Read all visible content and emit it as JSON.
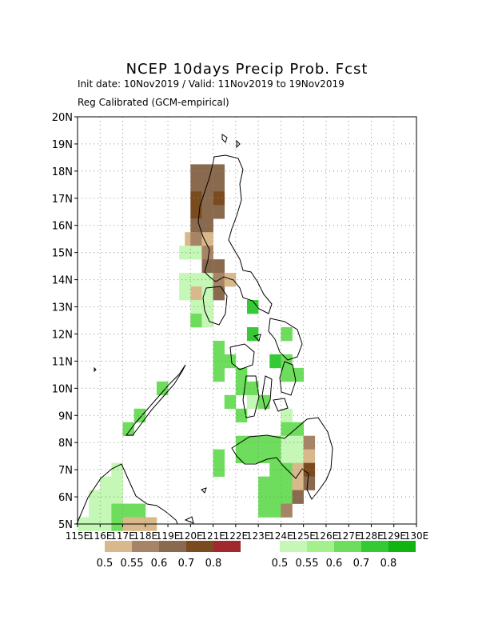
{
  "header": {
    "title": "NCEP 10days Precip Prob. Fcst",
    "subtitle_dates": "Init date: 10Nov2019 / Valid: 11Nov2019 to 19Nov2019",
    "subtitle_method": "Reg Calibrated (GCM-empirical)"
  },
  "map": {
    "lat_labels": [
      "5N",
      "6N",
      "7N",
      "8N",
      "9N",
      "10N",
      "11N",
      "12N",
      "13N",
      "14N",
      "15N",
      "16N",
      "17N",
      "18N",
      "19N",
      "20N"
    ],
    "lon_labels": [
      "115E",
      "116E",
      "117E",
      "118E",
      "119E",
      "120E",
      "121E",
      "122E",
      "123E",
      "124E",
      "125E",
      "126E",
      "127E",
      "128E",
      "129E",
      "130E"
    ],
    "lon_range": [
      115,
      130
    ],
    "lat_range": [
      5,
      20
    ],
    "grid": "dotted",
    "colors": {
      "dry": [
        "#d9b98c",
        "#a88466",
        "#8a6a4f",
        "#7a4b1e",
        "#a1282e"
      ],
      "wet": [
        "#c5f7b6",
        "#a4f08c",
        "#6edc5c",
        "#36c936",
        "#12b412"
      ]
    }
  },
  "legend": {
    "dry_labels": [
      "0.5",
      "0.55",
      "0.6",
      "0.7",
      "0.8"
    ],
    "wet_labels": [
      "0.5",
      "0.55",
      "0.6",
      "0.7",
      "0.8"
    ]
  },
  "chart_data": {
    "type": "heatmap",
    "cell_size_deg": 0.5,
    "cells": [
      [
        120.25,
        18.0,
        "d",
        2
      ],
      [
        120.75,
        18.0,
        "d",
        2
      ],
      [
        121.25,
        18.0,
        "d",
        2
      ],
      [
        120.25,
        17.5,
        "d",
        2
      ],
      [
        120.75,
        17.5,
        "d",
        2
      ],
      [
        121.25,
        17.5,
        "d",
        2
      ],
      [
        120.25,
        17.0,
        "d",
        3
      ],
      [
        120.75,
        17.0,
        "d",
        2
      ],
      [
        121.25,
        17.0,
        "d",
        3
      ],
      [
        120.25,
        16.5,
        "d",
        3
      ],
      [
        120.75,
        16.5,
        "d",
        2
      ],
      [
        121.25,
        16.5,
        "d",
        2
      ],
      [
        120.25,
        16.0,
        "d",
        2
      ],
      [
        120.75,
        16.0,
        "d",
        2
      ],
      [
        120.0,
        15.5,
        "d",
        0
      ],
      [
        120.25,
        15.5,
        "d",
        1
      ],
      [
        120.75,
        15.5,
        "d",
        0
      ],
      [
        119.75,
        15.0,
        "w",
        0
      ],
      [
        120.25,
        15.0,
        "w",
        0
      ],
      [
        120.75,
        15.0,
        "d",
        1
      ],
      [
        120.75,
        14.5,
        "d",
        2
      ],
      [
        121.25,
        14.5,
        "d",
        2
      ],
      [
        119.75,
        14.0,
        "w",
        0
      ],
      [
        120.25,
        14.0,
        "w",
        0
      ],
      [
        120.75,
        14.0,
        "w",
        0
      ],
      [
        121.25,
        14.0,
        "d",
        1
      ],
      [
        121.75,
        14.0,
        "d",
        0
      ],
      [
        120.25,
        13.5,
        "d",
        0
      ],
      [
        120.75,
        13.5,
        "w",
        0
      ],
      [
        121.25,
        13.5,
        "d",
        2
      ],
      [
        119.75,
        13.5,
        "w",
        0
      ],
      [
        120.25,
        13.0,
        "w",
        0
      ],
      [
        120.75,
        13.0,
        "w",
        0
      ],
      [
        120.25,
        12.5,
        "w",
        2
      ],
      [
        120.75,
        12.5,
        "w",
        0
      ],
      [
        122.75,
        13.0,
        "w",
        3
      ],
      [
        122.75,
        12.0,
        "w",
        3
      ],
      [
        124.25,
        12.0,
        "w",
        2
      ],
      [
        121.25,
        11.5,
        "w",
        2
      ],
      [
        121.25,
        11.0,
        "w",
        2
      ],
      [
        121.75,
        11.0,
        "w",
        2
      ],
      [
        121.25,
        10.5,
        "w",
        2
      ],
      [
        123.75,
        11.0,
        "w",
        3
      ],
      [
        124.25,
        11.0,
        "w",
        2
      ],
      [
        124.75,
        10.5,
        "w",
        2
      ],
      [
        124.25,
        10.5,
        "w",
        2
      ],
      [
        122.25,
        10.5,
        "w",
        2
      ],
      [
        122.25,
        10.0,
        "w",
        2
      ],
      [
        122.75,
        10.0,
        "w",
        2
      ],
      [
        121.75,
        9.5,
        "w",
        2
      ],
      [
        122.25,
        9.0,
        "w",
        2
      ],
      [
        122.75,
        9.5,
        "w",
        0
      ],
      [
        123.25,
        9.5,
        "w",
        2
      ],
      [
        124.25,
        9.0,
        "w",
        0
      ],
      [
        118.75,
        10.0,
        "w",
        2
      ],
      [
        117.75,
        9.0,
        "w",
        2
      ],
      [
        117.25,
        8.5,
        "w",
        2
      ],
      [
        122.25,
        8.0,
        "w",
        2
      ],
      [
        122.75,
        8.0,
        "w",
        2
      ],
      [
        123.25,
        8.0,
        "w",
        2
      ],
      [
        123.75,
        8.0,
        "w",
        2
      ],
      [
        124.25,
        8.5,
        "w",
        2
      ],
      [
        124.75,
        8.5,
        "w",
        2
      ],
      [
        124.25,
        8.0,
        "w",
        0
      ],
      [
        124.75,
        8.0,
        "w",
        0
      ],
      [
        125.25,
        8.0,
        "d",
        1
      ],
      [
        121.25,
        7.5,
        "w",
        2
      ],
      [
        122.25,
        7.5,
        "w",
        2
      ],
      [
        122.75,
        7.5,
        "w",
        2
      ],
      [
        123.25,
        7.5,
        "w",
        2
      ],
      [
        123.75,
        7.5,
        "w",
        2
      ],
      [
        124.25,
        7.5,
        "w",
        0
      ],
      [
        124.75,
        7.5,
        "w",
        0
      ],
      [
        125.25,
        7.5,
        "d",
        0
      ],
      [
        121.25,
        7.0,
        "w",
        2
      ],
      [
        123.75,
        7.0,
        "w",
        2
      ],
      [
        124.25,
        7.0,
        "w",
        2
      ],
      [
        124.75,
        7.0,
        "d",
        0
      ],
      [
        125.25,
        7.0,
        "d",
        3
      ],
      [
        123.25,
        6.5,
        "w",
        2
      ],
      [
        123.75,
        6.5,
        "w",
        2
      ],
      [
        124.25,
        6.5,
        "w",
        2
      ],
      [
        124.75,
        6.5,
        "d",
        0
      ],
      [
        125.25,
        6.5,
        "d",
        2
      ],
      [
        123.25,
        6.0,
        "w",
        2
      ],
      [
        123.75,
        6.0,
        "w",
        2
      ],
      [
        124.25,
        6.0,
        "w",
        2
      ],
      [
        124.75,
        6.0,
        "d",
        2
      ],
      [
        123.25,
        5.5,
        "w",
        2
      ],
      [
        123.75,
        5.5,
        "w",
        2
      ],
      [
        124.25,
        5.5,
        "d",
        1
      ],
      [
        115.75,
        6.0,
        "w",
        0
      ],
      [
        116.25,
        6.5,
        "w",
        0
      ],
      [
        116.75,
        6.5,
        "w",
        0
      ],
      [
        116.25,
        6.0,
        "w",
        0
      ],
      [
        116.75,
        6.0,
        "w",
        0
      ],
      [
        115.75,
        5.5,
        "w",
        0
      ],
      [
        116.25,
        5.5,
        "w",
        0
      ],
      [
        116.75,
        5.5,
        "w",
        2
      ],
      [
        117.25,
        5.5,
        "w",
        2
      ],
      [
        117.75,
        5.5,
        "w",
        2
      ],
      [
        115.25,
        5.0,
        "w",
        0
      ],
      [
        115.75,
        5.0,
        "w",
        0
      ],
      [
        116.25,
        5.0,
        "w",
        0
      ],
      [
        116.75,
        5.0,
        "w",
        2
      ],
      [
        117.25,
        5.0,
        "d",
        0
      ],
      [
        117.75,
        5.0,
        "d",
        0
      ],
      [
        118.25,
        5.0,
        "d",
        0
      ],
      [
        116.25,
        6.5,
        "w",
        0
      ],
      [
        116.75,
        7.0,
        "w",
        0
      ]
    ]
  }
}
